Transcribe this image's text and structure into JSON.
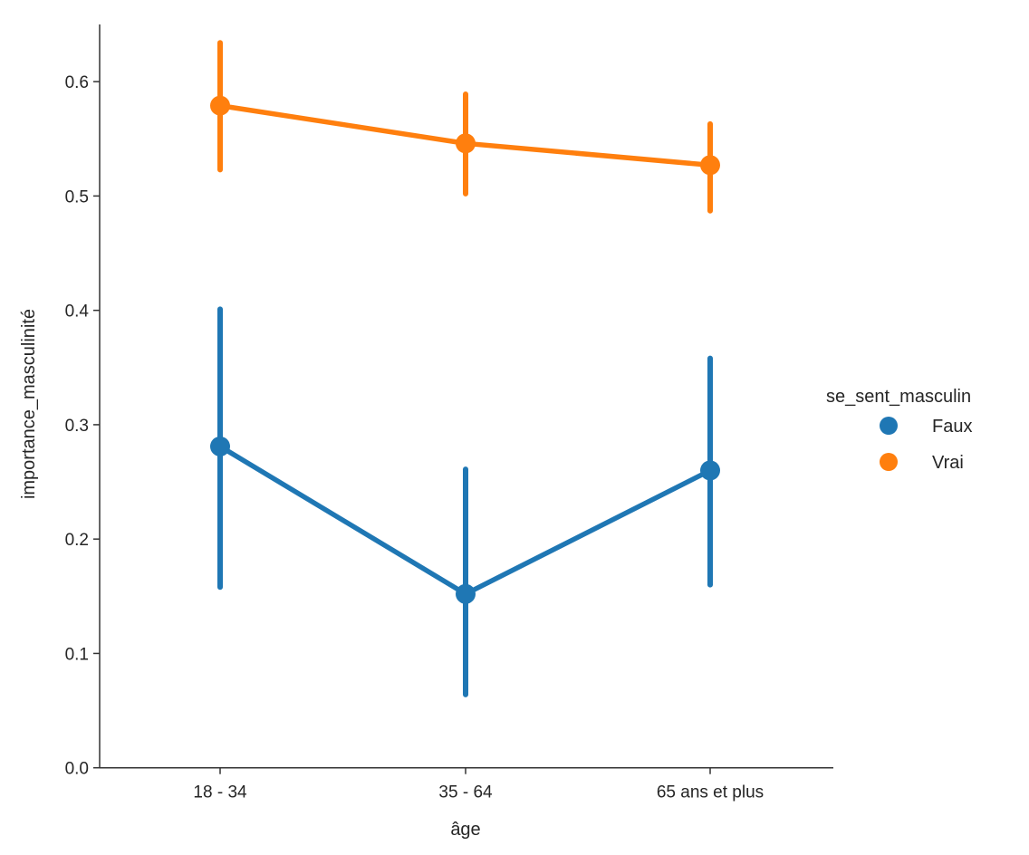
{
  "chart_data": {
    "type": "line",
    "subtype": "pointplot-with-error-bars",
    "title": "",
    "xlabel": "âge",
    "ylabel": "importance_masculinité",
    "categories": [
      "18 - 34",
      "35 - 64",
      "65 ans et plus"
    ],
    "ylim": [
      0.0,
      0.65
    ],
    "yticks": [
      "0.0",
      "0.1",
      "0.2",
      "0.3",
      "0.4",
      "0.5",
      "0.6"
    ],
    "grid": false,
    "legend": {
      "title": "se_sent_masculin",
      "placement": "right",
      "entries": [
        "Faux",
        "Vrai"
      ]
    },
    "series": [
      {
        "name": "Faux",
        "color": "#1f77b4",
        "values": [
          0.281,
          0.152,
          0.26
        ],
        "ci_low": [
          0.158,
          0.064,
          0.16
        ],
        "ci_high": [
          0.401,
          0.261,
          0.358
        ]
      },
      {
        "name": "Vrai",
        "color": "#ff7f0e",
        "values": [
          0.579,
          0.546,
          0.527
        ],
        "ci_low": [
          0.523,
          0.502,
          0.487
        ],
        "ci_high": [
          0.634,
          0.589,
          0.563
        ]
      }
    ]
  }
}
